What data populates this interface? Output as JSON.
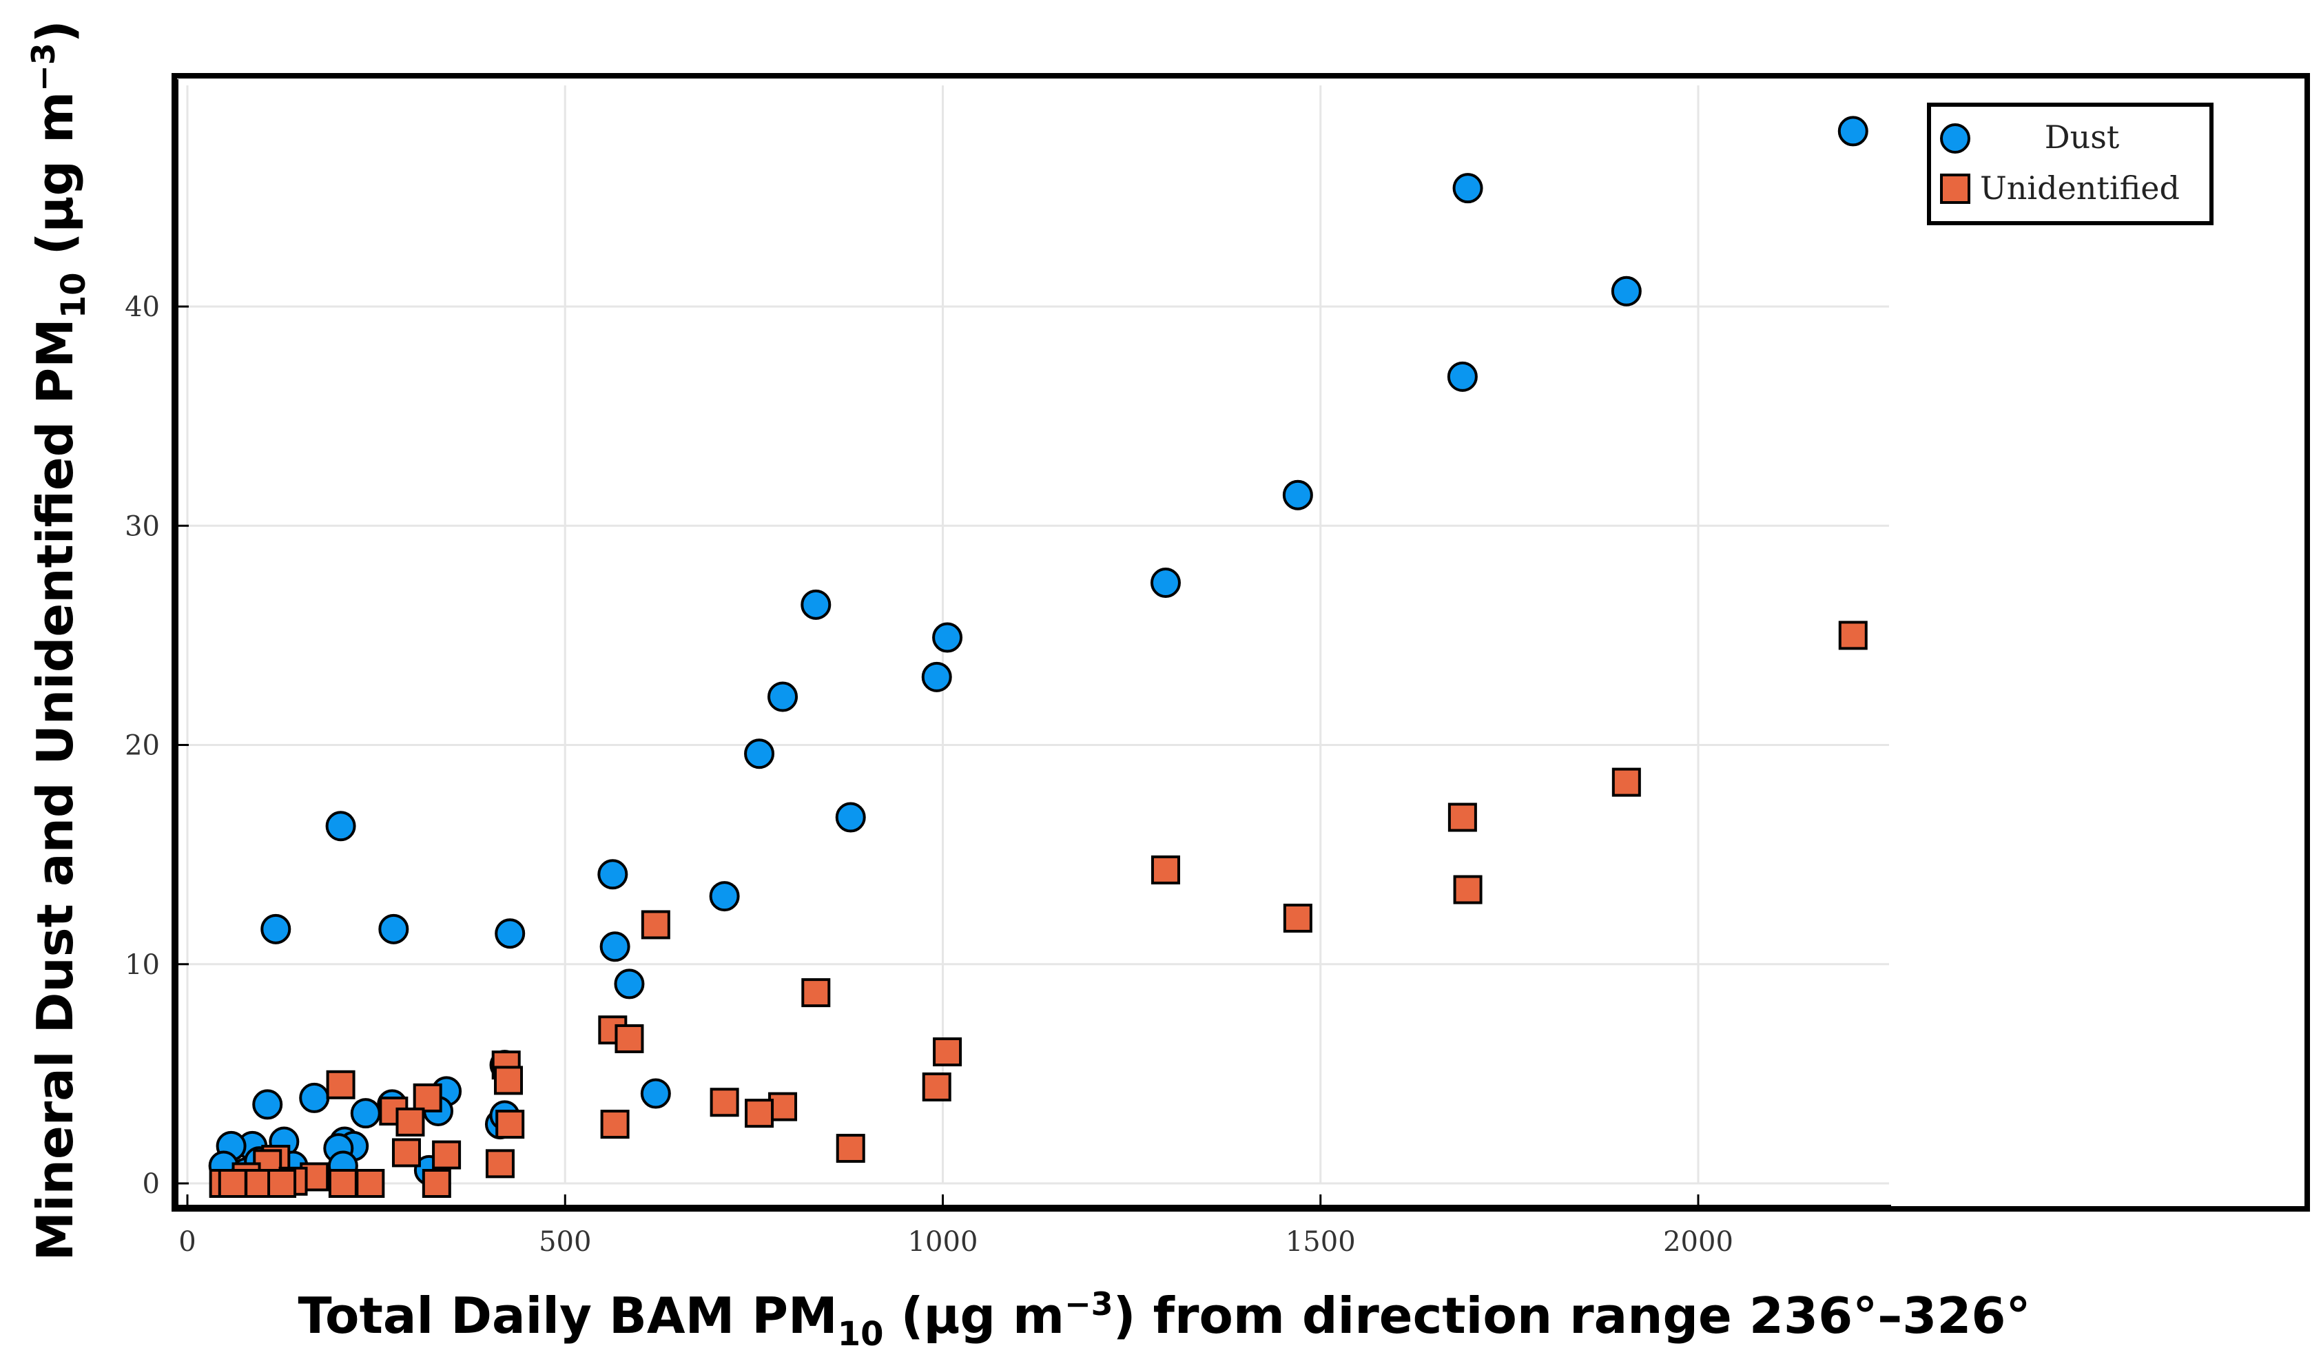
{
  "chart_data": {
    "type": "scatter",
    "title": "",
    "xlabel": {
      "pre": "Total Daily BAM PM",
      "sub": "10",
      "post1": " (µg m",
      "sup": "−3",
      "post2": ") from direction range 236°–326°"
    },
    "ylabel": {
      "pre": "Mineral Dust and Unidentified PM",
      "sub": "10",
      "post1": " (µg m",
      "sup": "−3",
      "post2": ")"
    },
    "xlim": [
      -10,
      2800
    ],
    "ylim": [
      -2,
      50
    ],
    "xticks": [
      0,
      500,
      1000,
      1500,
      2000
    ],
    "yticks": [
      0,
      10,
      20,
      30,
      40
    ],
    "grid": true,
    "legend_position": "top-right",
    "series": [
      {
        "name": "Dust",
        "marker": "circle",
        "color": "#0a96f0",
        "points": [
          [
            2205,
            48.0
          ],
          [
            1695,
            45.4
          ],
          [
            1905,
            40.7
          ],
          [
            1688,
            36.8
          ],
          [
            1470,
            31.4
          ],
          [
            1295,
            27.4
          ],
          [
            832,
            26.4
          ],
          [
            1006,
            24.9
          ],
          [
            992,
            23.1
          ],
          [
            788,
            22.2
          ],
          [
            757,
            19.6
          ],
          [
            878,
            16.7
          ],
          [
            203,
            16.3
          ],
          [
            563,
            14.1
          ],
          [
            711,
            13.1
          ],
          [
            117,
            11.6
          ],
          [
            273,
            11.6
          ],
          [
            427,
            11.4
          ],
          [
            566,
            10.8
          ],
          [
            585,
            9.1
          ],
          [
            620,
            4.1
          ],
          [
            420,
            5.4
          ],
          [
            343,
            4.2
          ],
          [
            332,
            3.3
          ],
          [
            414,
            2.7
          ],
          [
            420,
            3.1
          ],
          [
            271,
            3.6
          ],
          [
            236,
            3.2
          ],
          [
            168,
            3.9
          ],
          [
            106,
            3.6
          ],
          [
            208,
            1.9
          ],
          [
            220,
            1.7
          ],
          [
            200,
            1.6
          ],
          [
            128,
            1.9
          ],
          [
            86,
            1.7
          ],
          [
            58,
            1.7
          ],
          [
            48,
            0.8
          ],
          [
            206,
            0.8
          ],
          [
            320,
            0.6
          ],
          [
            140,
            0.8
          ],
          [
            78,
            0.5
          ],
          [
            95,
            1.0
          ]
        ]
      },
      {
        "name": "Unidentified",
        "marker": "square",
        "color": "#e8673f",
        "points": [
          [
            2205,
            25.0
          ],
          [
            1905,
            18.3
          ],
          [
            1688,
            16.7
          ],
          [
            1295,
            14.3
          ],
          [
            1695,
            13.4
          ],
          [
            1470,
            12.1
          ],
          [
            620,
            11.8
          ],
          [
            832,
            8.7
          ],
          [
            563,
            7.0
          ],
          [
            585,
            6.6
          ],
          [
            1006,
            6.0
          ],
          [
            422,
            5.4
          ],
          [
            425,
            4.7
          ],
          [
            992,
            4.4
          ],
          [
            203,
            4.5
          ],
          [
            318,
            3.9
          ],
          [
            711,
            3.7
          ],
          [
            788,
            3.5
          ],
          [
            757,
            3.2
          ],
          [
            273,
            3.3
          ],
          [
            427,
            2.7
          ],
          [
            566,
            2.7
          ],
          [
            295,
            2.8
          ],
          [
            878,
            1.6
          ],
          [
            290,
            1.4
          ],
          [
            343,
            1.3
          ],
          [
            414,
            0.9
          ],
          [
            117,
            1.1
          ],
          [
            106,
            0.9
          ],
          [
            168,
            0.3
          ],
          [
            140,
            0.1
          ],
          [
            78,
            0.3
          ],
          [
            48,
            0.0
          ],
          [
            60,
            0.0
          ],
          [
            95,
            0.0
          ],
          [
            206,
            0.0
          ],
          [
            242,
            0.0
          ],
          [
            330,
            0.0
          ],
          [
            125,
            0.0
          ]
        ]
      }
    ]
  }
}
